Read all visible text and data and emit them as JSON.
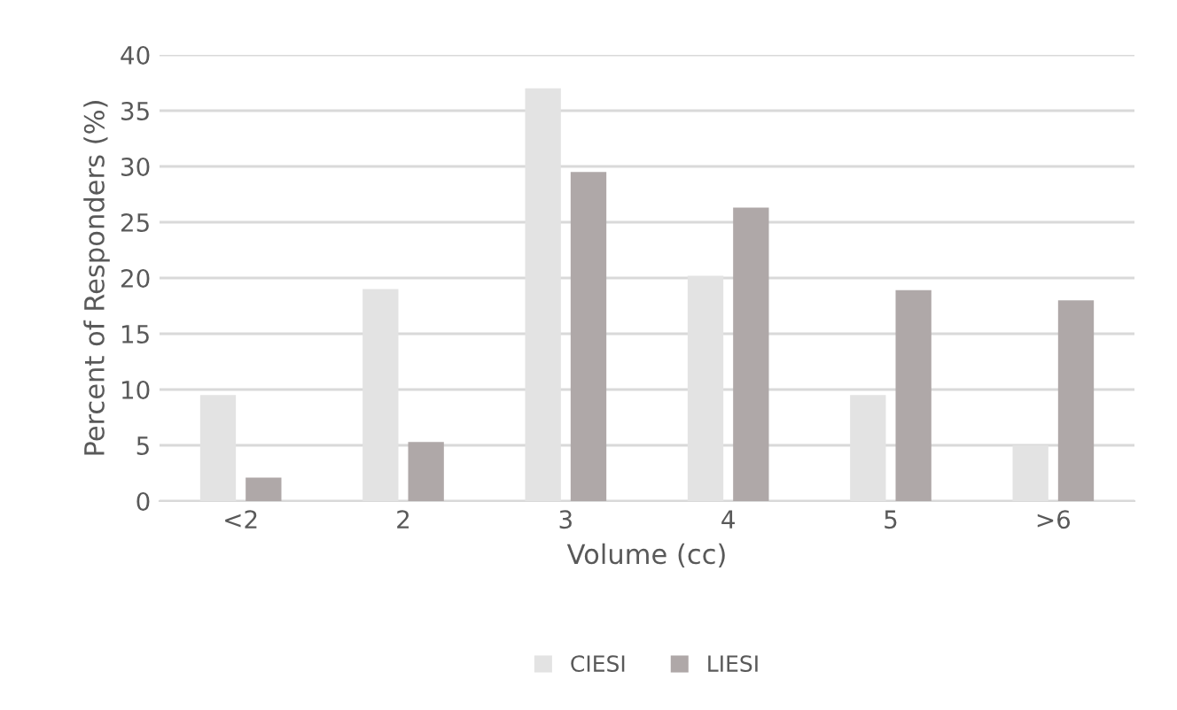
{
  "chart_data": {
    "type": "bar",
    "xlabel": "Volume (cc)",
    "ylabel": "Percent of Responders (%)",
    "categories": [
      "<2",
      "2",
      "3",
      "4",
      "5",
      ">6"
    ],
    "series": [
      {
        "name": "CIESI",
        "color": "#e3e3e3",
        "values": [
          9.5,
          19,
          37,
          20.2,
          9.5,
          5
        ]
      },
      {
        "name": "LIESI",
        "color": "#afa8a8",
        "values": [
          2.1,
          5.3,
          29.5,
          26.3,
          18.9,
          18.0
        ]
      }
    ],
    "ylim": [
      0,
      40
    ],
    "yticks": [
      0,
      5,
      10,
      15,
      20,
      25,
      30,
      35,
      40
    ],
    "grid": "y",
    "legend": "bottom"
  }
}
